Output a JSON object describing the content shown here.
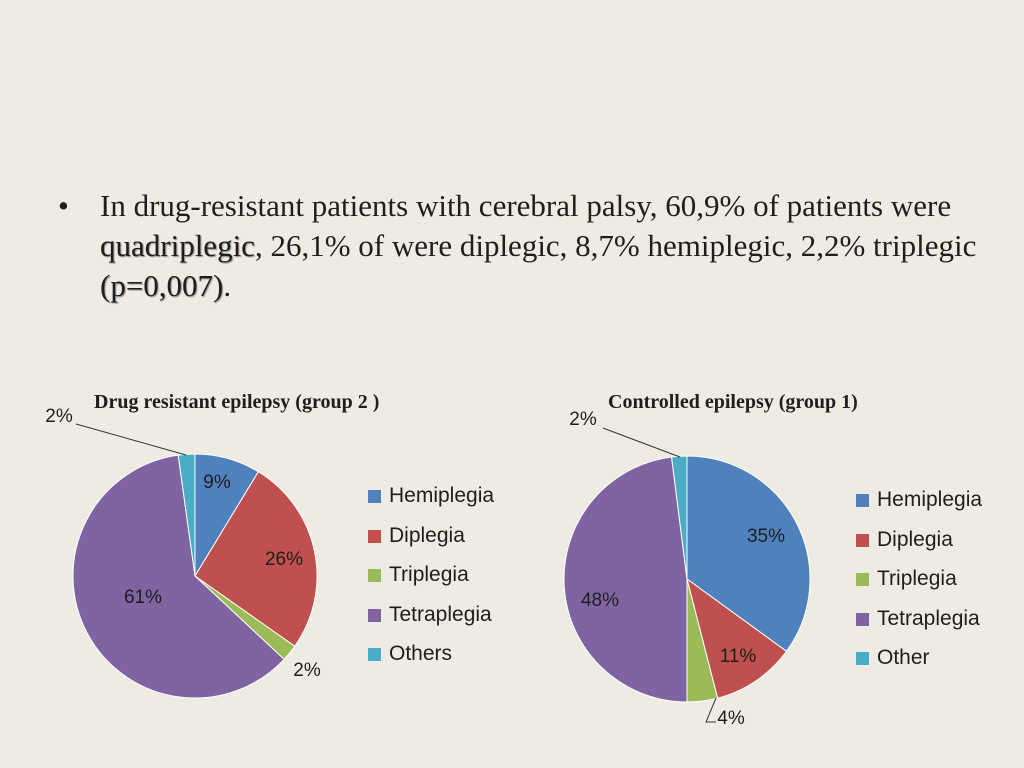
{
  "bullet": {
    "marker": "•",
    "text_before": "In drug-resistant patients with cerebral palsy, 60,9% of patients were ",
    "emph1": "quadriplegic",
    "text_middle": ", 26,1% of were diplegic, 8,7% hemiplegic, 2,2% triplegic ",
    "emph2": "(p=0,007)",
    "text_after": "."
  },
  "colors": {
    "background": "#eeebe2",
    "blue": "#4f81bd",
    "red": "#c0504d",
    "green": "#9bbb59",
    "purple": "#8064a2",
    "teal": "#4bacc6"
  },
  "chart_data": [
    {
      "type": "pie",
      "title": "Drug resistant epilepsy (group 2 )",
      "categories": [
        "Hemiplegia",
        "Diplegia",
        "Triplegia",
        "Tetraplegia",
        "Others"
      ],
      "values": [
        8.7,
        26.1,
        2.2,
        60.9,
        2.2
      ],
      "data_labels": [
        "9%",
        "26%",
        "2%",
        "61%",
        "2%"
      ],
      "legend": [
        "Hemiplegia",
        "Diplegia",
        "Triplegia",
        "Tetraplegia",
        "Others"
      ],
      "legend_position": "right"
    },
    {
      "type": "pie",
      "title": "Controlled epilepsy (group 1)",
      "categories": [
        "Hemiplegia",
        "Diplegia",
        "Triplegia",
        "Tetraplegia",
        "Other"
      ],
      "values": [
        35,
        11,
        4,
        48,
        2
      ],
      "data_labels": [
        "35%",
        "11%",
        "4%",
        "48%",
        "2%"
      ],
      "legend": [
        "Hemiplegia",
        "Diplegia",
        "Triplegia",
        "Tetraplegia",
        "Other"
      ],
      "legend_position": "right"
    }
  ]
}
